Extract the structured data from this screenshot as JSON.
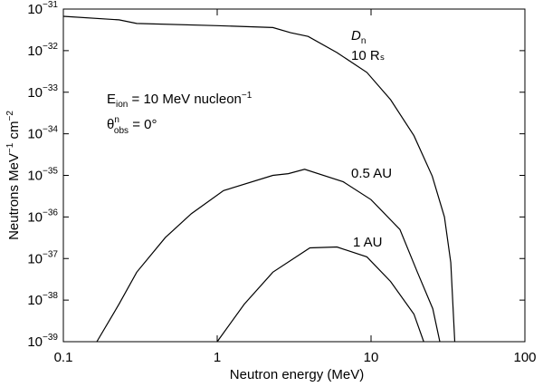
{
  "chart_data": {
    "type": "line",
    "xlabel": "Neutron energy (MeV)",
    "ylabel": [
      "Neutrons MeV",
      "−1",
      " cm",
      "−2"
    ],
    "xscale": "log",
    "yscale": "log",
    "xlim": [
      0.1,
      100
    ],
    "ylim": [
      1e-39,
      1e-31
    ],
    "xticks": [
      0.1,
      1,
      10,
      100
    ],
    "yticks": [
      {
        "value": 1e-39,
        "label": "10−39"
      },
      {
        "value": 1e-38,
        "label": "10−38"
      },
      {
        "value": 1e-37,
        "label": "10−37"
      },
      {
        "value": 1e-36,
        "label": "10−36"
      },
      {
        "value": 1e-35,
        "label": "10−35"
      },
      {
        "value": 1e-34,
        "label": "10−34"
      },
      {
        "value": 1e-33,
        "label": "10−33"
      },
      {
        "value": 1e-32,
        "label": "10−32"
      },
      {
        "value": 1e-31,
        "label": "10−31"
      }
    ],
    "annotations": [
      [
        "D",
        "n"
      ],
      [
        "E",
        "ion",
        " = 10 MeV nucleon",
        "−1"
      ],
      [
        "θ",
        "n",
        "obs",
        " = 0°"
      ]
    ],
    "series": [
      {
        "name": "10 Rₛ",
        "color": "#000000",
        "x": [
          0.1,
          0.23,
          0.3,
          1,
          2.3,
          3,
          3.9,
          6,
          9.4,
          13.4,
          19,
          25,
          30,
          33,
          35
        ],
        "values": [
          6.7e-32,
          5.5e-32,
          4.5e-32,
          4e-32,
          3.6e-32,
          2.7e-32,
          2.2e-32,
          9e-33,
          3e-33,
          6.6e-34,
          9e-35,
          9.6e-36,
          1e-36,
          8e-38,
          1e-39
        ]
      },
      {
        "name": "0.5 AU",
        "color": "#000000",
        "x": [
          0.165,
          0.23,
          0.3,
          0.46,
          0.68,
          1.1,
          2.3,
          2.9,
          3.7,
          6.6,
          10,
          15.4,
          20,
          25.2,
          28
        ],
        "values": [
          1e-39,
          8e-39,
          4.7e-38,
          3.2e-37,
          1.2e-36,
          4.3e-36,
          1e-35,
          1.1e-35,
          1.4e-35,
          7e-36,
          2.6e-36,
          5e-37,
          4.7e-38,
          6.2e-39,
          1e-39
        ]
      },
      {
        "name": "1 AU",
        "color": "#000000",
        "x": [
          1,
          1.5,
          2.3,
          4,
          6,
          9.4,
          13.4,
          19,
          22
        ],
        "values": [
          1e-39,
          8e-39,
          4.7e-38,
          1.8e-37,
          1.9e-37,
          1.1e-37,
          2.8e-38,
          4.6e-39,
          1e-39
        ]
      }
    ]
  }
}
